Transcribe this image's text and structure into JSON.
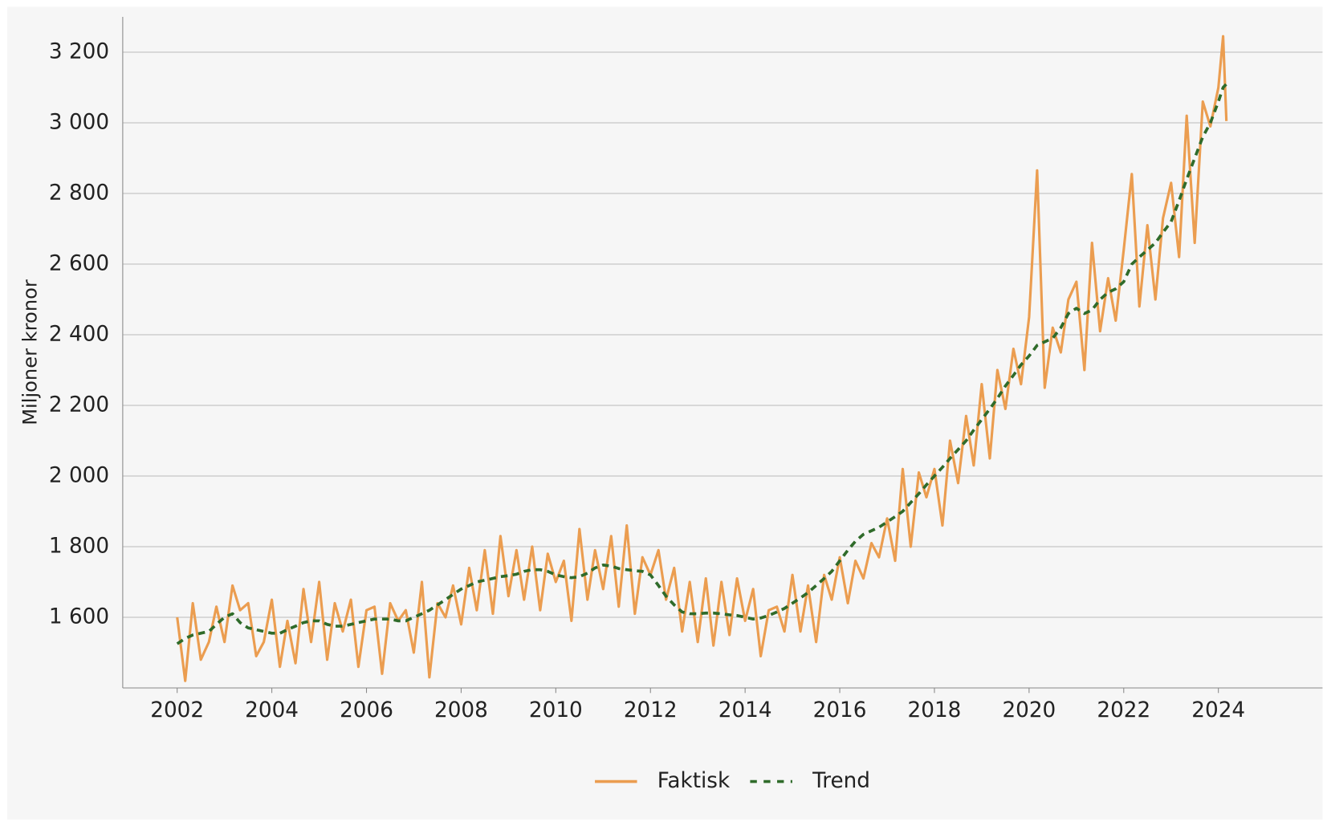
{
  "chart_data": {
    "type": "line",
    "y_label": "Miljoner kronor",
    "x": [
      2002,
      2002.17,
      2002.33,
      2002.5,
      2002.67,
      2002.83,
      2003,
      2003.17,
      2003.33,
      2003.5,
      2003.67,
      2003.83,
      2004,
      2004.17,
      2004.33,
      2004.5,
      2004.67,
      2004.83,
      2005,
      2005.17,
      2005.33,
      2005.5,
      2005.67,
      2005.83,
      2006,
      2006.17,
      2006.33,
      2006.5,
      2006.67,
      2006.83,
      2007,
      2007.17,
      2007.33,
      2007.5,
      2007.67,
      2007.83,
      2008,
      2008.17,
      2008.33,
      2008.5,
      2008.67,
      2008.83,
      2009,
      2009.17,
      2009.33,
      2009.5,
      2009.67,
      2009.83,
      2010,
      2010.17,
      2010.33,
      2010.5,
      2010.67,
      2010.83,
      2011,
      2011.17,
      2011.33,
      2011.5,
      2011.67,
      2011.83,
      2012,
      2012.17,
      2012.33,
      2012.5,
      2012.67,
      2012.83,
      2013,
      2013.17,
      2013.33,
      2013.5,
      2013.67,
      2013.83,
      2014,
      2014.17,
      2014.33,
      2014.5,
      2014.67,
      2014.83,
      2015,
      2015.17,
      2015.33,
      2015.5,
      2015.67,
      2015.83,
      2016,
      2016.17,
      2016.33,
      2016.5,
      2016.67,
      2016.83,
      2017,
      2017.17,
      2017.33,
      2017.5,
      2017.67,
      2017.83,
      2018,
      2018.17,
      2018.33,
      2018.5,
      2018.67,
      2018.83,
      2019,
      2019.17,
      2019.33,
      2019.5,
      2019.67,
      2019.83,
      2020,
      2020.17,
      2020.33,
      2020.5,
      2020.67,
      2020.83,
      2021,
      2021.17,
      2021.33,
      2021.5,
      2021.67,
      2021.83,
      2022,
      2022.17,
      2022.33,
      2022.5,
      2022.67,
      2022.83,
      2023,
      2023.17,
      2023.33,
      2023.5,
      2023.67,
      2023.83,
      2024,
      2024.1,
      2024.17
    ],
    "series": [
      {
        "name": "Faktisk",
        "color": "#eb9d50",
        "dashed": false,
        "values": [
          1600,
          1420,
          1640,
          1480,
          1530,
          1630,
          1530,
          1690,
          1620,
          1640,
          1490,
          1530,
          1650,
          1460,
          1590,
          1470,
          1680,
          1530,
          1700,
          1480,
          1640,
          1560,
          1650,
          1460,
          1620,
          1630,
          1440,
          1640,
          1590,
          1620,
          1500,
          1700,
          1430,
          1640,
          1600,
          1690,
          1580,
          1740,
          1620,
          1790,
          1610,
          1830,
          1660,
          1790,
          1650,
          1800,
          1620,
          1780,
          1700,
          1760,
          1590,
          1850,
          1650,
          1790,
          1680,
          1830,
          1630,
          1860,
          1610,
          1770,
          1720,
          1790,
          1650,
          1740,
          1560,
          1700,
          1530,
          1710,
          1520,
          1700,
          1550,
          1710,
          1590,
          1680,
          1490,
          1620,
          1630,
          1560,
          1720,
          1560,
          1690,
          1530,
          1720,
          1650,
          1770,
          1640,
          1760,
          1710,
          1810,
          1770,
          1880,
          1760,
          2020,
          1800,
          2010,
          1940,
          2020,
          1860,
          2100,
          1980,
          2170,
          2030,
          2260,
          2050,
          2300,
          2190,
          2360,
          2260,
          2450,
          2865,
          2250,
          2420,
          2350,
          2500,
          2550,
          2300,
          2660,
          2410,
          2560,
          2440,
          2640,
          2855,
          2480,
          2710,
          2500,
          2730,
          2830,
          2620,
          3020,
          2660,
          3060,
          2990,
          3100,
          3245,
          3005
        ]
      },
      {
        "name": "Trend",
        "color": "#2f6b2a",
        "dashed": true,
        "values": [
          1525,
          1540,
          1550,
          1555,
          1560,
          1580,
          1600,
          1610,
          1585,
          1570,
          1565,
          1560,
          1555,
          1555,
          1565,
          1575,
          1585,
          1590,
          1590,
          1580,
          1575,
          1575,
          1580,
          1585,
          1590,
          1595,
          1595,
          1595,
          1590,
          1590,
          1600,
          1610,
          1620,
          1635,
          1650,
          1665,
          1680,
          1690,
          1700,
          1705,
          1710,
          1715,
          1718,
          1722,
          1730,
          1735,
          1735,
          1730,
          1720,
          1715,
          1712,
          1715,
          1725,
          1740,
          1748,
          1745,
          1738,
          1735,
          1732,
          1730,
          1720,
          1690,
          1660,
          1635,
          1615,
          1610,
          1610,
          1612,
          1612,
          1610,
          1607,
          1605,
          1600,
          1595,
          1598,
          1605,
          1615,
          1625,
          1640,
          1655,
          1670,
          1690,
          1710,
          1730,
          1760,
          1790,
          1815,
          1835,
          1845,
          1855,
          1870,
          1885,
          1900,
          1925,
          1950,
          1975,
          2000,
          2025,
          2050,
          2075,
          2100,
          2130,
          2160,
          2190,
          2220,
          2255,
          2285,
          2315,
          2340,
          2370,
          2380,
          2390,
          2420,
          2460,
          2475,
          2460,
          2470,
          2500,
          2520,
          2530,
          2550,
          2600,
          2620,
          2640,
          2660,
          2690,
          2720,
          2780,
          2840,
          2900,
          2960,
          3000,
          3060,
          3100,
          3110
        ]
      }
    ],
    "xlim": [
      2000.85,
      2026.2
    ],
    "xticks": [
      2002,
      2004,
      2006,
      2008,
      2010,
      2012,
      2014,
      2016,
      2018,
      2020,
      2022,
      2024
    ],
    "ylim": [
      1400,
      3300
    ],
    "yticks": [
      {
        "value": 1600,
        "label": "1 600"
      },
      {
        "value": 1800,
        "label": "1 800"
      },
      {
        "value": 2000,
        "label": "2 000"
      },
      {
        "value": 2200,
        "label": "2 200"
      },
      {
        "value": 2400,
        "label": "2 400"
      },
      {
        "value": 2600,
        "label": "2 600"
      },
      {
        "value": 2800,
        "label": "2 800"
      },
      {
        "value": 3000,
        "label": "3 000"
      },
      {
        "value": 3200,
        "label": "3 200"
      }
    ],
    "grid": true,
    "legend": "bottom"
  }
}
